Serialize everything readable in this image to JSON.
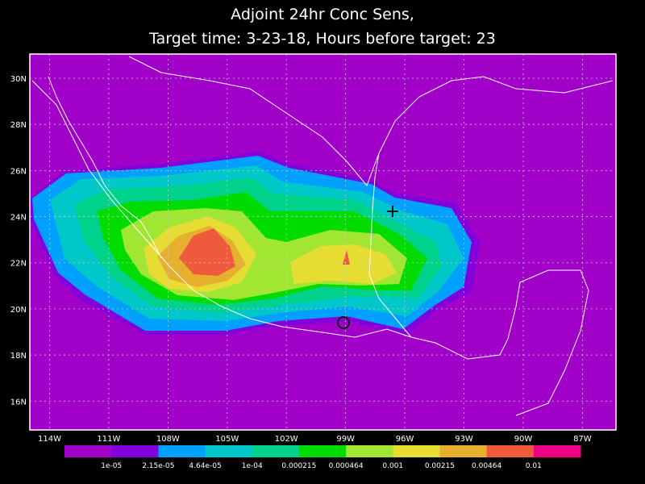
{
  "title_lines": [
    "Adjoint 24hr Conc Sens,",
    "Target time: 3-23-18, Hours before target: 23"
  ],
  "map": {
    "xlim": [
      -115,
      -85.3
    ],
    "ylim": [
      14.75,
      31.05
    ],
    "xticks": [
      {
        "value": -114,
        "label": "114W"
      },
      {
        "value": -111,
        "label": "111W"
      },
      {
        "value": -108,
        "label": "108W"
      },
      {
        "value": -105,
        "label": "105W"
      },
      {
        "value": -102,
        "label": "102W"
      },
      {
        "value": -99,
        "label": "99W"
      },
      {
        "value": -96,
        "label": "96W"
      },
      {
        "value": -93,
        "label": "93W"
      },
      {
        "value": -90,
        "label": "90W"
      },
      {
        "value": -87,
        "label": "87W"
      }
    ],
    "yticks": [
      {
        "value": 30,
        "label": "30N"
      },
      {
        "value": 28,
        "label": "28N"
      },
      {
        "value": 26,
        "label": "26N"
      },
      {
        "value": 24,
        "label": "24N"
      },
      {
        "value": 22,
        "label": "22N"
      },
      {
        "value": 20,
        "label": "20N"
      },
      {
        "value": 18,
        "label": "18N"
      },
      {
        "value": 16,
        "label": "16N"
      }
    ],
    "grid": true,
    "background": "#a000c8"
  },
  "colorbar": {
    "colors": [
      "#a000c8",
      "#8200dc",
      "#00a0ff",
      "#00c8c8",
      "#00d28c",
      "#00dc00",
      "#a0e632",
      "#e6dc32",
      "#e6af2d",
      "#f05a3c",
      "#f00082"
    ],
    "labels": [
      "1e-05",
      "2.15e-05",
      "4.64e-05",
      "1e-04",
      "0.000215",
      "0.000464",
      "0.001",
      "0.00215",
      "0.00464",
      "0.01"
    ]
  }
}
